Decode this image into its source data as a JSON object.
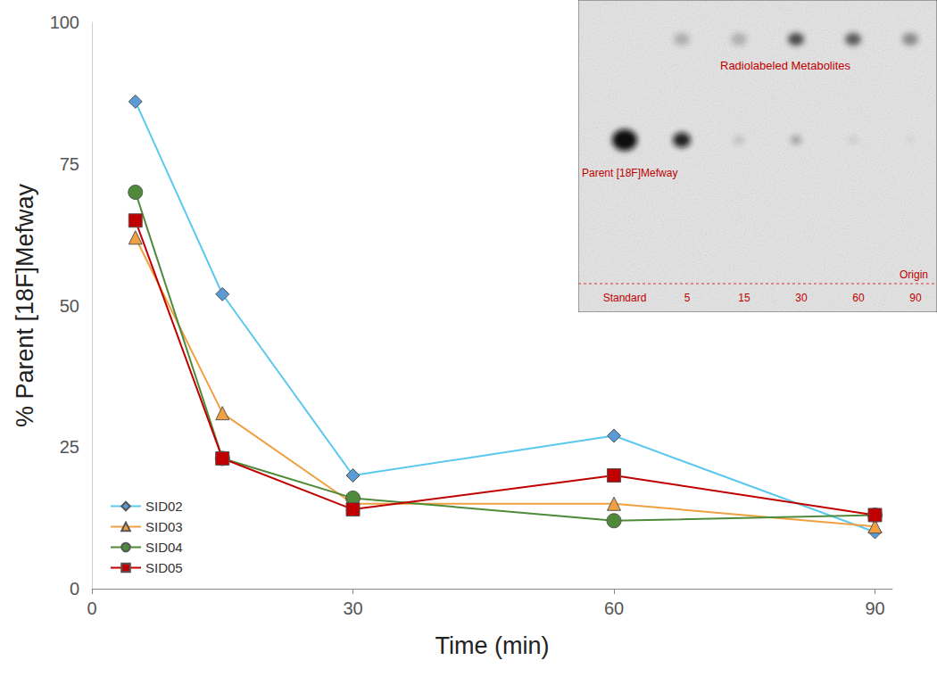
{
  "chart_data": {
    "type": "line",
    "x_label": "Time (min)",
    "y_label": "% Parent [18F]Mefway",
    "x": [
      5,
      15,
      30,
      60,
      90
    ],
    "series": [
      {
        "name": "SID02",
        "color": "#5bc8ee",
        "marker": "diamond",
        "values": [
          86,
          52,
          20,
          27,
          10
        ]
      },
      {
        "name": "SID03",
        "color": "#f0a040",
        "marker": "triangle",
        "values": [
          62,
          31,
          15,
          15,
          11
        ]
      },
      {
        "name": "SID04",
        "color": "#4e8a3a",
        "marker": "circle",
        "values": [
          70,
          23,
          16,
          12,
          13
        ]
      },
      {
        "name": "SID05",
        "color": "#c00000",
        "marker": "square",
        "values": [
          65,
          23,
          14,
          20,
          13
        ]
      }
    ],
    "xlim": [
      0,
      92
    ],
    "xticks": [
      0,
      30,
      60,
      90
    ],
    "ylim": [
      0,
      100
    ],
    "yticks": [
      0,
      25,
      50,
      75,
      100
    ],
    "grid": false,
    "legend": "lower left",
    "annotations": {
      "inset": {
        "metabolite_label": "Radiolabeled Metabolites",
        "parent_label": "Parent [18F]Mefway",
        "origin_label": "Origin",
        "lanes": [
          "Standard",
          "5",
          "15",
          "30",
          "60",
          "90"
        ]
      }
    }
  }
}
